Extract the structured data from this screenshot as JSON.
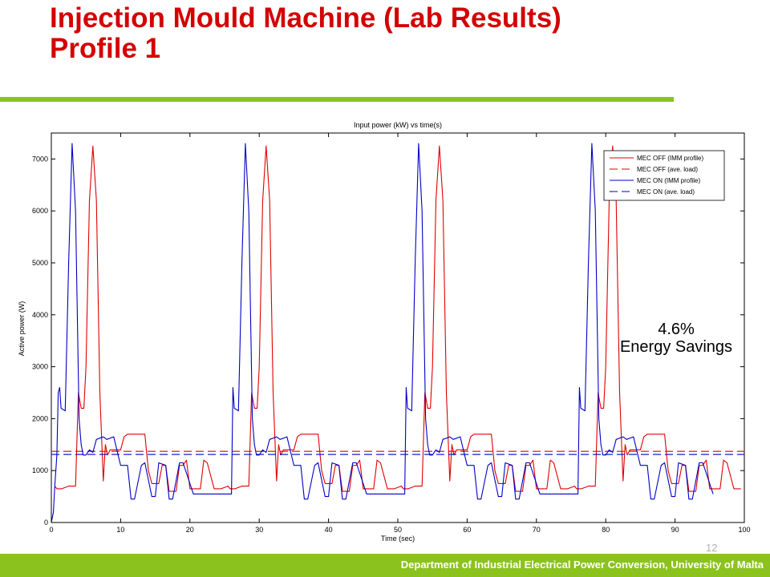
{
  "slide": {
    "title_line1": "Injection Mould Machine (Lab Results)",
    "title_line2": "Profile 1",
    "page_number": "12",
    "footer": "Department of Industrial Electrical Power Conversion, University of Malta",
    "accent_color": "#8cc21d",
    "title_color": "#d40000"
  },
  "annotation": {
    "line1": "4.6%",
    "line2": "Energy Savings"
  },
  "chart_data": {
    "type": "line",
    "title": "Input power (kW) vs time(s)",
    "xlabel": "Time (sec)",
    "ylabel": "Active power (W)",
    "xlim": [
      0,
      100
    ],
    "ylim": [
      0,
      7500
    ],
    "xticks": [
      0,
      10,
      20,
      30,
      40,
      50,
      60,
      70,
      80,
      90,
      100
    ],
    "yticks": [
      0,
      1000,
      2000,
      3000,
      4000,
      5000,
      6000,
      7000
    ],
    "grid": false,
    "legend_position": "top-right",
    "series": [
      {
        "name": "MEC OFF (IMM profile)",
        "color": "#e00000",
        "style": "solid",
        "cycle": {
          "offset": 0.5,
          "period": 25,
          "x": [
            0,
            0.3,
            0.6,
            1.0,
            2.0,
            3.0,
            3.4,
            3.8,
            4.2,
            4.5,
            5.0,
            5.5,
            6.0,
            6.5,
            7.0,
            7.3,
            7.6,
            8.0,
            8.5,
            9.5,
            10.0,
            10.5,
            13.0,
            13.5,
            14.0,
            15.0,
            15.5,
            16.0,
            16.5,
            17.5,
            18.0,
            18.5,
            19.0,
            19.5,
            20.0,
            21.0,
            21.5,
            22.0,
            23.0,
            24.0,
            25.0
          ],
          "y": [
            700,
            650,
            650,
            650,
            700,
            700,
            2500,
            2200,
            2200,
            3000,
            6200,
            7250,
            6200,
            2500,
            800,
            1500,
            1300,
            1400,
            1400,
            1400,
            1650,
            1700,
            1700,
            1000,
            750,
            750,
            1100,
            1100,
            600,
            600,
            1100,
            1100,
            1200,
            650,
            650,
            650,
            1200,
            1150,
            650,
            650,
            700
          ]
        }
      },
      {
        "name": "MEC OFF (ave. load)",
        "color": "#e00000",
        "style": "dashed",
        "constant": 1370
      },
      {
        "name": "MEC ON (IMM profile)",
        "color": "#0000c8",
        "style": "solid",
        "prefix": {
          "x": [
            0,
            0.3,
            0.5,
            0.8,
            1.0
          ],
          "y": [
            0,
            200,
            700,
            1300,
            2500
          ]
        },
        "cycle": {
          "offset": 1.0,
          "period": 25,
          "x": [
            0,
            0.2,
            0.4,
            1.0,
            1.5,
            2.0,
            2.5,
            3.0,
            3.3,
            3.6,
            4.0,
            4.5,
            5.0,
            5.5,
            6.5,
            7.0,
            8.0,
            9.0,
            10.0,
            10.5,
            11.0,
            12.0,
            12.5,
            13.5,
            14.0,
            14.5,
            15.5,
            16.0,
            16.5,
            17.5,
            18.0,
            19.5,
            25.0
          ],
          "y": [
            2500,
            2600,
            2200,
            2150,
            5000,
            7300,
            6000,
            2000,
            1500,
            1300,
            1300,
            1400,
            1350,
            1600,
            1650,
            1600,
            1650,
            1100,
            1100,
            450,
            450,
            1100,
            1150,
            500,
            500,
            1150,
            1100,
            450,
            450,
            1150,
            1150,
            550,
            550
          ]
        }
      },
      {
        "name": "MEC ON (ave. load)",
        "color": "#0000c8",
        "style": "dashed",
        "constant": 1310
      }
    ]
  }
}
